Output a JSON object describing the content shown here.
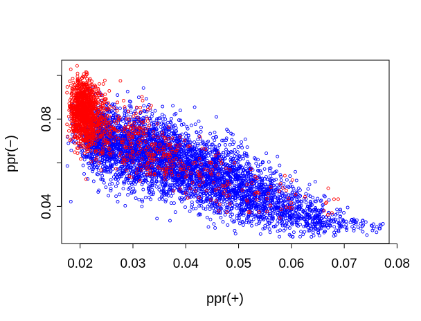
{
  "chart_data": {
    "type": "scatter",
    "title": "",
    "xlabel": "ppr(+)",
    "ylabel": "ppr(−)",
    "xlim": [
      0.0165,
      0.0785
    ],
    "ylim": [
      0.023,
      0.107
    ],
    "x_ticks": [
      0.02,
      0.03,
      0.04,
      0.05,
      0.06,
      0.07,
      0.08
    ],
    "x_tick_labels": [
      "0.02",
      "0.03",
      "0.04",
      "0.05",
      "0.06",
      "0.07",
      "0.08"
    ],
    "y_ticks": [
      0.04,
      0.06,
      0.08,
      0.1
    ],
    "y_tick_labels": [
      "0.04",
      "",
      "0.08",
      ""
    ],
    "grid": false,
    "legend": "none",
    "marker": "open-circle",
    "series": [
      {
        "color": "#0000ff",
        "clusters": [
          {
            "x": 0.024,
            "y": 0.072,
            "sx": 0.0022,
            "sy": 0.0075,
            "n": 700
          },
          {
            "x": 0.03,
            "y": 0.066,
            "sx": 0.003,
            "sy": 0.0085,
            "n": 900
          },
          {
            "x": 0.036,
            "y": 0.062,
            "sx": 0.003,
            "sy": 0.0085,
            "n": 800
          },
          {
            "x": 0.042,
            "y": 0.057,
            "sx": 0.003,
            "sy": 0.008,
            "n": 700
          },
          {
            "x": 0.048,
            "y": 0.051,
            "sx": 0.003,
            "sy": 0.0075,
            "n": 600
          },
          {
            "x": 0.054,
            "y": 0.045,
            "sx": 0.003,
            "sy": 0.0065,
            "n": 450
          },
          {
            "x": 0.06,
            "y": 0.038,
            "sx": 0.003,
            "sy": 0.005,
            "n": 300
          },
          {
            "x": 0.066,
            "y": 0.033,
            "sx": 0.0025,
            "sy": 0.004,
            "n": 150
          },
          {
            "x": 0.072,
            "y": 0.031,
            "sx": 0.0025,
            "sy": 0.002,
            "n": 40
          },
          {
            "x": 0.076,
            "y": 0.03,
            "sx": 0.0012,
            "sy": 0.001,
            "n": 10
          }
        ]
      },
      {
        "color": "#ff0000",
        "clusters": [
          {
            "x": 0.0205,
            "y": 0.084,
            "sx": 0.0012,
            "sy": 0.0075,
            "n": 900
          },
          {
            "x": 0.023,
            "y": 0.078,
            "sx": 0.0015,
            "sy": 0.008,
            "n": 250
          },
          {
            "x": 0.029,
            "y": 0.072,
            "sx": 0.003,
            "sy": 0.008,
            "n": 150
          },
          {
            "x": 0.036,
            "y": 0.062,
            "sx": 0.003,
            "sy": 0.006,
            "n": 100
          },
          {
            "x": 0.045,
            "y": 0.054,
            "sx": 0.004,
            "sy": 0.006,
            "n": 60
          },
          {
            "x": 0.055,
            "y": 0.045,
            "sx": 0.005,
            "sy": 0.005,
            "n": 40
          },
          {
            "x": 0.066,
            "y": 0.038,
            "sx": 0.002,
            "sy": 0.003,
            "n": 6
          }
        ]
      }
    ]
  }
}
